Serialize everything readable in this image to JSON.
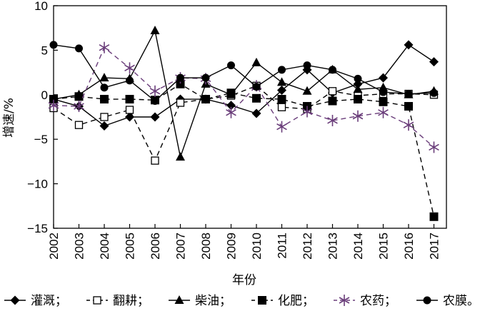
{
  "chart_data": {
    "type": "line",
    "title": "",
    "xlabel": "年份",
    "ylabel": "增速/%",
    "categories": [
      "2002",
      "2003",
      "2004",
      "2005",
      "2006",
      "2007",
      "2008",
      "2009",
      "2010",
      "2011",
      "2012",
      "2013",
      "2014",
      "2015",
      "2016",
      "2017"
    ],
    "ylim": [
      -15,
      10
    ],
    "yticks": [
      -15,
      -10,
      -5,
      0,
      5,
      10
    ],
    "yticklabels": [
      "−15",
      "−10",
      "−5",
      "0",
      "5",
      "10"
    ],
    "grid": false,
    "legend_position": "bottom",
    "series": [
      {
        "name": "灌溉",
        "legend_label": "灌溉；",
        "marker": "diamond",
        "line": "solid",
        "color": "#000000",
        "values": [
          -0.5,
          -1.3,
          -3.5,
          -2.5,
          -2.5,
          -0.5,
          -0.5,
          -1.2,
          -2.1,
          0.5,
          2.8,
          0.2,
          1.2,
          1.9,
          5.6,
          3.7
        ]
      },
      {
        "name": "翻耕",
        "legend_label": "翻耕；",
        "marker": "open-square",
        "line": "dashed",
        "color": "#000000",
        "values": [
          -1.5,
          -3.4,
          -2.5,
          -1.7,
          -7.4,
          -0.9,
          -0.5,
          -0.1,
          1.0,
          -1.4,
          -1.6,
          0.4,
          -0.1,
          0.1,
          0.1,
          0.0
        ]
      },
      {
        "name": "柴油",
        "legend_label": "柴油；",
        "marker": "triangle",
        "line": "solid",
        "color": "#000000",
        "values": [
          -0.5,
          0.0,
          1.9,
          1.8,
          7.2,
          -7.0,
          1.2,
          0.0,
          3.6,
          1.4,
          0.4,
          2.8,
          0.6,
          0.8,
          0.0,
          0.4
        ]
      },
      {
        "name": "化肥",
        "legend_label": "化肥；",
        "marker": "filled-square",
        "line": "dashed",
        "color": "#000000",
        "values": [
          -0.5,
          -0.2,
          -0.5,
          -0.5,
          -0.6,
          1.2,
          -0.5,
          0.2,
          -0.4,
          -0.5,
          -1.3,
          -0.7,
          -0.5,
          -0.8,
          -1.3,
          -13.7
        ]
      },
      {
        "name": "农药",
        "legend_label": "农药；",
        "marker": "asterisk",
        "line": "dashed",
        "color": "#6a3d7a",
        "values": [
          -1.2,
          -1.3,
          5.3,
          3.0,
          0.4,
          1.9,
          1.8,
          -2.0,
          1.0,
          -3.6,
          -1.9,
          -2.9,
          -2.4,
          -2.0,
          -3.4,
          -5.9
        ]
      },
      {
        "name": "农膜",
        "legend_label": "农膜。",
        "marker": "circle",
        "line": "solid",
        "color": "#000000",
        "values": [
          5.6,
          5.2,
          0.8,
          1.6,
          -0.7,
          1.9,
          1.9,
          3.3,
          0.9,
          2.8,
          3.3,
          2.8,
          1.8,
          0.3,
          0.1,
          0.2
        ]
      }
    ]
  }
}
